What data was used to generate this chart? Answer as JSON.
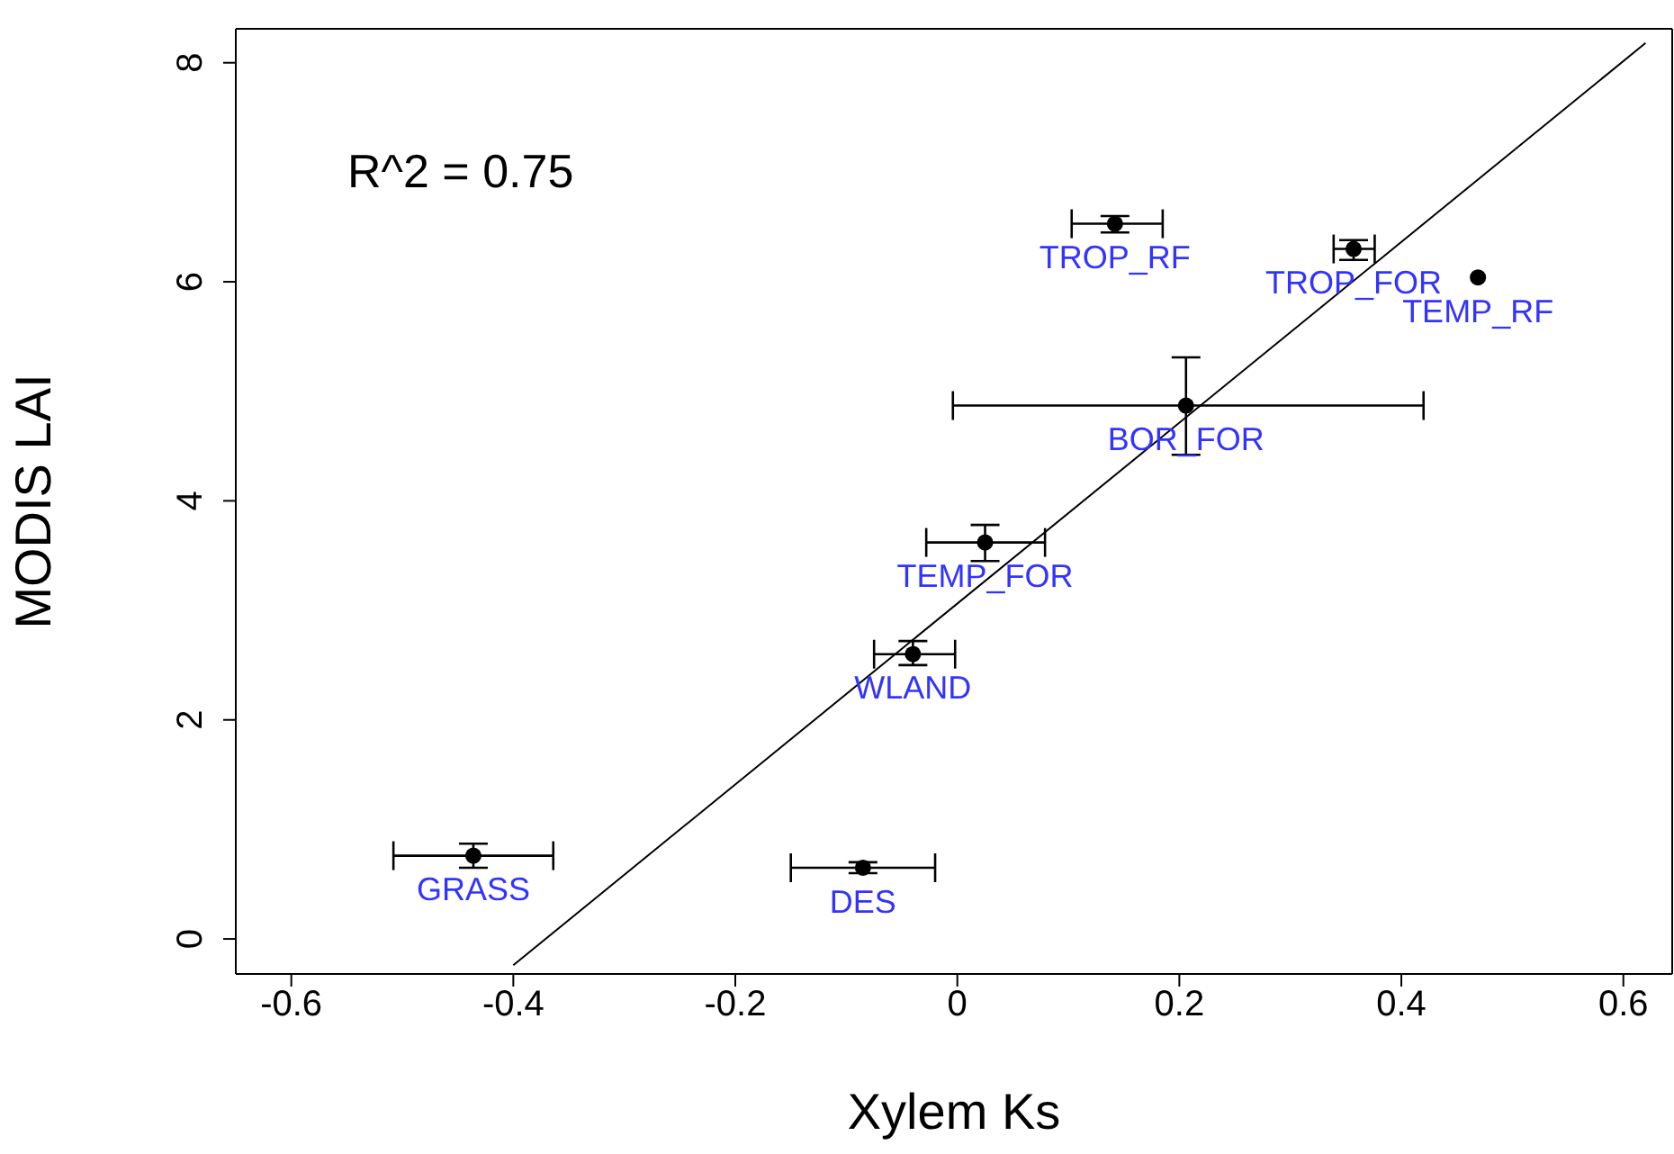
{
  "chart_data": {
    "type": "scatter",
    "xlabel": "Xylem Ks",
    "ylabel": "MODIS LAI",
    "xlim": [
      -0.65,
      0.644
    ],
    "ylim": [
      -0.32,
      8.31
    ],
    "xticks": [
      -0.6,
      -0.4,
      -0.2,
      0.0,
      0.2,
      0.4,
      0.6
    ],
    "yticks": [
      0,
      2,
      4,
      6,
      8
    ],
    "grid": false,
    "legend": false,
    "series": [
      {
        "type": "scatter",
        "color": "#000000",
        "marker": "circle",
        "x": [
          -0.436,
          -0.085,
          -0.04,
          0.025,
          0.206,
          0.142,
          0.357,
          0.469
        ],
        "values": [
          0.76,
          0.65,
          2.6,
          3.62,
          4.87,
          6.53,
          6.3,
          6.04
        ],
        "errors": [
          [
            0.65,
            0.87
          ],
          [
            0.6,
            0.7
          ],
          [
            2.5,
            2.72
          ],
          [
            3.45,
            3.78
          ],
          [
            4.42,
            5.31
          ],
          [
            6.45,
            6.6
          ],
          [
            6.2,
            6.38
          ],
          null
        ],
        "xerrors": [
          [
            -0.508,
            -0.364
          ],
          [
            -0.15,
            -0.02
          ],
          [
            -0.075,
            -0.002
          ],
          [
            -0.028,
            0.079
          ],
          [
            -0.004,
            0.42
          ],
          [
            0.103,
            0.185
          ],
          [
            0.339,
            0.376
          ],
          null
        ]
      },
      {
        "type": "line",
        "color": "#000000",
        "marker": "none",
        "x": [
          -0.4,
          0.62
        ],
        "values": [
          -0.24,
          8.18
        ]
      }
    ],
    "annotations": [
      "R^2 =  0.75",
      {
        "text": "GRASS",
        "x": -0.436,
        "y": 0.76
      },
      {
        "text": "DES",
        "x": -0.085,
        "y": 0.65
      },
      {
        "text": "WLAND",
        "x": -0.04,
        "y": 2.6
      },
      {
        "text": "TEMP_FOR",
        "x": 0.025,
        "y": 3.62
      },
      {
        "text": "BOR_FOR",
        "x": 0.206,
        "y": 4.87
      },
      {
        "text": "TROP_RF",
        "x": 0.142,
        "y": 6.53
      },
      {
        "text": "TROP_FOR",
        "x": 0.357,
        "y": 6.3
      },
      {
        "text": "TEMP_RF",
        "x": 0.469,
        "y": 6.04
      }
    ]
  }
}
